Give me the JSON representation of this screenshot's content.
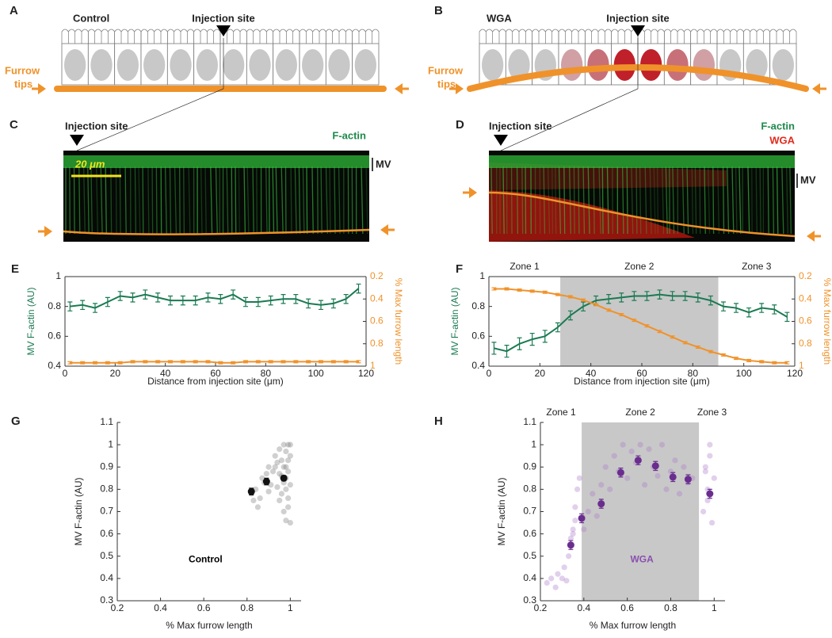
{
  "panels": {
    "a": {
      "label": "A",
      "condition": "Control",
      "injection": "Injection site",
      "furrow_tips": [
        "Furrow",
        "tips"
      ]
    },
    "b": {
      "label": "B",
      "condition": "WGA",
      "injection": "Injection site",
      "furrow_tips": [
        "Furrow",
        "tips"
      ]
    },
    "c": {
      "label": "C",
      "injection": "Injection site",
      "channels": [
        {
          "name": "F-actin",
          "color": "#1f8a4c"
        }
      ],
      "scale_bar": "20 μm",
      "region": "MV"
    },
    "d": {
      "label": "D",
      "injection": "Injection site",
      "channels": [
        {
          "name": "F-actin",
          "color": "#1f8a4c"
        },
        {
          "name": "WGA",
          "color": "#e02a1c"
        }
      ],
      "region": "MV"
    }
  },
  "chart_data": [
    {
      "type": "line",
      "label": "E",
      "xlabel": "Distance from injection site (μm)",
      "ylabel": "MV F-actin (AU)",
      "y2label": "% Max furrow length",
      "xlim": [
        0,
        120
      ],
      "xticks": [
        0,
        20,
        40,
        60,
        80,
        100,
        120
      ],
      "ylim": [
        0.4,
        1
      ],
      "yticks": [
        0.4,
        0.6,
        0.8,
        1
      ],
      "y2lim": [
        0.2,
        1
      ],
      "y2ticks": [
        0.2,
        0.4,
        0.6,
        0.8,
        1
      ],
      "y2_inverted": true,
      "x": [
        2,
        7,
        12,
        17,
        22,
        27,
        32,
        37,
        42,
        47,
        52,
        57,
        62,
        67,
        72,
        77,
        82,
        87,
        92,
        97,
        102,
        107,
        112,
        117
      ],
      "series": [
        {
          "color": "#1a7a52",
          "values": [
            0.8,
            0.81,
            0.79,
            0.83,
            0.87,
            0.86,
            0.88,
            0.86,
            0.84,
            0.84,
            0.84,
            0.86,
            0.85,
            0.88,
            0.83,
            0.83,
            0.84,
            0.85,
            0.85,
            0.82,
            0.81,
            0.82,
            0.85,
            0.92
          ],
          "errors": [
            0.03,
            0.03,
            0.03,
            0.03,
            0.03,
            0.03,
            0.03,
            0.03,
            0.03,
            0.03,
            0.03,
            0.03,
            0.03,
            0.03,
            0.03,
            0.03,
            0.03,
            0.03,
            0.03,
            0.03,
            0.03,
            0.03,
            0.03,
            0.03
          ]
        },
        {
          "color": "#f0922a",
          "axis": "y2",
          "values": [
            0.97,
            0.97,
            0.97,
            0.97,
            0.97,
            0.96,
            0.96,
            0.96,
            0.96,
            0.96,
            0.96,
            0.96,
            0.97,
            0.97,
            0.96,
            0.96,
            0.96,
            0.96,
            0.96,
            0.96,
            0.96,
            0.96,
            0.96,
            0.96
          ],
          "errors": [
            0.01,
            0.01,
            0.01,
            0.01,
            0.01,
            0.01,
            0.01,
            0.01,
            0.01,
            0.01,
            0.01,
            0.01,
            0.01,
            0.01,
            0.01,
            0.01,
            0.01,
            0.01,
            0.01,
            0.01,
            0.01,
            0.01,
            0.01,
            0.01
          ]
        }
      ]
    },
    {
      "type": "line",
      "label": "F",
      "xlabel": "Distance from injection site (μm)",
      "ylabel": "MV F-actin (AU)",
      "y2label": "% Max furrow length",
      "xlim": [
        0,
        120
      ],
      "xticks": [
        0,
        20,
        40,
        60,
        80,
        100,
        120
      ],
      "ylim": [
        0.4,
        1
      ],
      "yticks": [
        0.4,
        0.6,
        0.8,
        1
      ],
      "y2lim": [
        0.2,
        1
      ],
      "y2ticks": [
        0.2,
        0.4,
        0.6,
        0.8,
        1
      ],
      "y2_inverted": true,
      "shade": [
        28,
        90
      ],
      "shade_color": "#c8c8c8",
      "zones": [
        "Zone 1",
        "Zone 2",
        "Zone 3"
      ],
      "x": [
        2,
        7,
        12,
        17,
        22,
        27,
        32,
        37,
        42,
        47,
        52,
        57,
        62,
        67,
        72,
        77,
        82,
        87,
        92,
        97,
        102,
        107,
        112,
        117
      ],
      "series": [
        {
          "color": "#1a7a52",
          "values": [
            0.52,
            0.5,
            0.55,
            0.58,
            0.6,
            0.66,
            0.74,
            0.8,
            0.84,
            0.85,
            0.86,
            0.87,
            0.87,
            0.88,
            0.87,
            0.87,
            0.86,
            0.84,
            0.8,
            0.79,
            0.76,
            0.79,
            0.78,
            0.73
          ],
          "errors": [
            0.04,
            0.04,
            0.04,
            0.04,
            0.04,
            0.03,
            0.03,
            0.03,
            0.03,
            0.03,
            0.03,
            0.03,
            0.03,
            0.03,
            0.03,
            0.03,
            0.03,
            0.03,
            0.03,
            0.03,
            0.03,
            0.03,
            0.03,
            0.03
          ]
        },
        {
          "color": "#f0922a",
          "axis": "y2",
          "values": [
            0.31,
            0.31,
            0.32,
            0.33,
            0.34,
            0.36,
            0.38,
            0.41,
            0.45,
            0.5,
            0.54,
            0.59,
            0.64,
            0.69,
            0.74,
            0.79,
            0.83,
            0.87,
            0.9,
            0.93,
            0.95,
            0.96,
            0.97,
            0.97
          ],
          "errors": [
            0.01,
            0.01,
            0.01,
            0.01,
            0.01,
            0.01,
            0.01,
            0.01,
            0.01,
            0.01,
            0.01,
            0.01,
            0.01,
            0.01,
            0.01,
            0.01,
            0.01,
            0.01,
            0.01,
            0.01,
            0.01,
            0.01,
            0.01,
            0.01
          ]
        }
      ]
    },
    {
      "type": "scatter",
      "label": "G",
      "annotation": "Control",
      "annotation_color": "#000000",
      "xlabel": "% Max furrow length",
      "ylabel": "MV F-actin (AU)",
      "xlim": [
        0.2,
        1.05
      ],
      "xticks": [
        0.2,
        0.4,
        0.6,
        0.8,
        1
      ],
      "ylim": [
        0.3,
        1.1
      ],
      "yticks": [
        0.3,
        0.4,
        0.5,
        0.6,
        0.7,
        0.8,
        0.9,
        1,
        1.1
      ],
      "series": [
        {
          "color": "rgba(120,120,120,0.35)",
          "x": [
            0.82,
            0.84,
            0.86,
            0.87,
            0.88,
            0.89,
            0.9,
            0.91,
            0.92,
            0.93,
            0.94,
            0.95,
            0.95,
            0.96,
            0.96,
            0.97,
            0.97,
            0.97,
            0.98,
            0.98,
            0.98,
            0.98,
            0.99,
            0.99,
            0.99,
            0.99,
            1.0,
            1.0,
            1.0,
            1.0,
            0.96,
            0.97,
            0.98,
            0.99,
            0.95,
            0.94,
            0.93,
            0.9,
            0.85,
            0.83
          ],
          "values": [
            0.78,
            0.8,
            0.76,
            0.85,
            0.83,
            0.87,
            0.9,
            0.82,
            0.88,
            0.95,
            0.92,
            0.98,
            0.75,
            0.86,
            0.93,
            1.0,
            0.7,
            0.9,
            0.97,
            0.66,
            0.85,
            0.8,
            1.0,
            0.93,
            0.72,
            0.88,
            1.0,
            0.95,
            0.82,
            0.65,
            0.78,
            0.83,
            0.9,
            0.76,
            0.87,
            0.81,
            0.9,
            0.79,
            0.72,
            0.75
          ]
        },
        {
          "color": "#111111",
          "x": [
            0.82,
            0.89,
            0.97
          ],
          "values": [
            0.79,
            0.835,
            0.85
          ],
          "errors": [
            0.015,
            0.015,
            0.012
          ]
        }
      ]
    },
    {
      "type": "scatter",
      "label": "H",
      "annotation": "WGA",
      "annotation_color": "#8a4fb0",
      "xlabel": "% Max furrow length",
      "ylabel": "MV F-actin (AU)",
      "xlim": [
        0.2,
        1.05
      ],
      "xticks": [
        0.2,
        0.4,
        0.6,
        0.8,
        1
      ],
      "ylim": [
        0.3,
        1.1
      ],
      "yticks": [
        0.3,
        0.4,
        0.5,
        0.6,
        0.7,
        0.8,
        0.9,
        1,
        1.1
      ],
      "shade": [
        0.39,
        0.93
      ],
      "shade_color": "#c8c8c8",
      "zones": [
        "Zone 1",
        "Zone 2",
        "Zone 3"
      ],
      "series": [
        {
          "color": "rgba(170,120,200,0.35)",
          "x": [
            0.23,
            0.25,
            0.27,
            0.28,
            0.3,
            0.31,
            0.32,
            0.33,
            0.34,
            0.35,
            0.36,
            0.37,
            0.38,
            0.36,
            0.35,
            0.4,
            0.42,
            0.44,
            0.46,
            0.48,
            0.5,
            0.52,
            0.54,
            0.56,
            0.58,
            0.6,
            0.62,
            0.64,
            0.66,
            0.68,
            0.7,
            0.72,
            0.74,
            0.76,
            0.78,
            0.8,
            0.82,
            0.84,
            0.86,
            0.88,
            0.9,
            0.95,
            0.96,
            0.97,
            0.98,
            0.99,
            1.0,
            0.97,
            0.98,
            0.96
          ],
          "values": [
            0.38,
            0.4,
            0.36,
            0.42,
            0.4,
            0.45,
            0.39,
            0.5,
            0.58,
            0.62,
            0.72,
            0.8,
            0.85,
            0.66,
            0.6,
            0.62,
            0.7,
            0.78,
            0.68,
            0.82,
            0.9,
            0.8,
            0.95,
            0.88,
            1.0,
            0.85,
            0.97,
            0.92,
            1.0,
            0.82,
            0.98,
            0.9,
            0.86,
            1.0,
            0.8,
            0.88,
            0.93,
            0.78,
            0.9,
            0.83,
            0.85,
            0.7,
            0.9,
            0.8,
            1.0,
            0.65,
            0.85,
            0.75,
            0.95,
            0.88
          ]
        },
        {
          "color": "#6a2d8f",
          "x": [
            0.34,
            0.39,
            0.48,
            0.57,
            0.65,
            0.73,
            0.81,
            0.88,
            0.98
          ],
          "values": [
            0.55,
            0.67,
            0.735,
            0.875,
            0.93,
            0.905,
            0.855,
            0.845,
            0.78
          ],
          "errors": [
            0.02,
            0.02,
            0.02,
            0.02,
            0.02,
            0.02,
            0.02,
            0.02,
            0.02
          ]
        }
      ]
    }
  ]
}
